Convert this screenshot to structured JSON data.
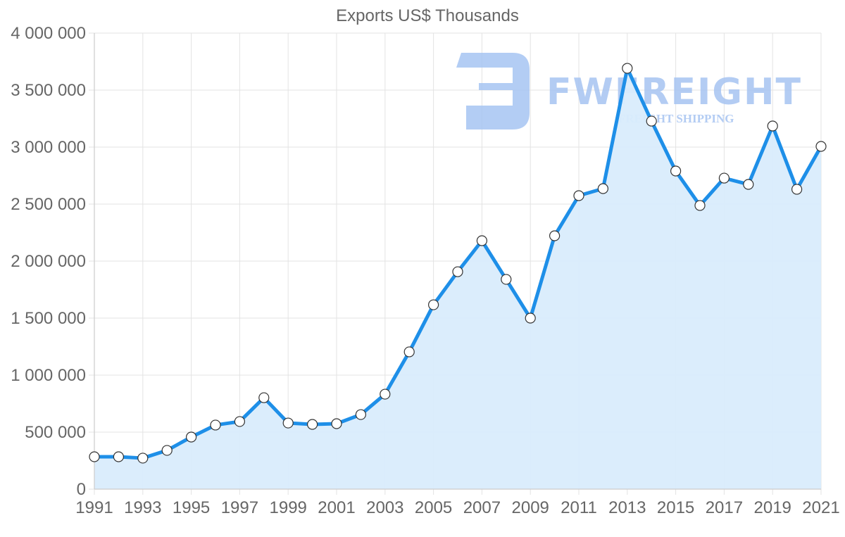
{
  "chart_data": {
    "type": "line",
    "title": "Exports US$ Thousands",
    "xlabel": "",
    "ylabel": "",
    "x": [
      1991,
      1992,
      1993,
      1994,
      1995,
      1996,
      1997,
      1998,
      1999,
      2000,
      2001,
      2002,
      2003,
      2004,
      2005,
      2006,
      2007,
      2008,
      2009,
      2010,
      2011,
      2012,
      2013,
      2014,
      2015,
      2016,
      2017,
      2018,
      2019,
      2020,
      2021
    ],
    "x_tick_labels": [
      "1991",
      "1993",
      "1995",
      "1997",
      "1999",
      "2001",
      "2003",
      "2005",
      "2007",
      "2009",
      "2011",
      "2013",
      "2015",
      "2017",
      "2019",
      "2021"
    ],
    "y_tick_labels": [
      "0",
      "500 000",
      "1 000 000",
      "1 500 000",
      "2 000 000",
      "2 500 000",
      "3 000 000",
      "3 500 000",
      "4 000 000"
    ],
    "y_ticks": [
      0,
      500000,
      1000000,
      1500000,
      2000000,
      2500000,
      3000000,
      3500000,
      4000000
    ],
    "ylim": [
      0,
      4000000
    ],
    "xlim": [
      1991,
      2021
    ],
    "grid": true,
    "legend": null,
    "filled": true,
    "series": [
      {
        "name": "Exports US$ Thousands",
        "color": "#1e8fe8",
        "fill_color": "#d9ecfc",
        "values": [
          284000,
          284000,
          272000,
          340000,
          457000,
          562000,
          593000,
          802000,
          580000,
          568000,
          574000,
          654000,
          833000,
          1204000,
          1617000,
          1907000,
          2179000,
          1840000,
          1500000,
          2222000,
          2574000,
          2636000,
          3691000,
          3228000,
          2790000,
          2488000,
          2728000,
          2673000,
          3185000,
          2630000,
          3006000
        ]
      }
    ]
  },
  "watermark": {
    "brand": "FWFREIGHT",
    "tagline": "FREIGHT SHIPPING",
    "color": "#a6c4f2"
  }
}
